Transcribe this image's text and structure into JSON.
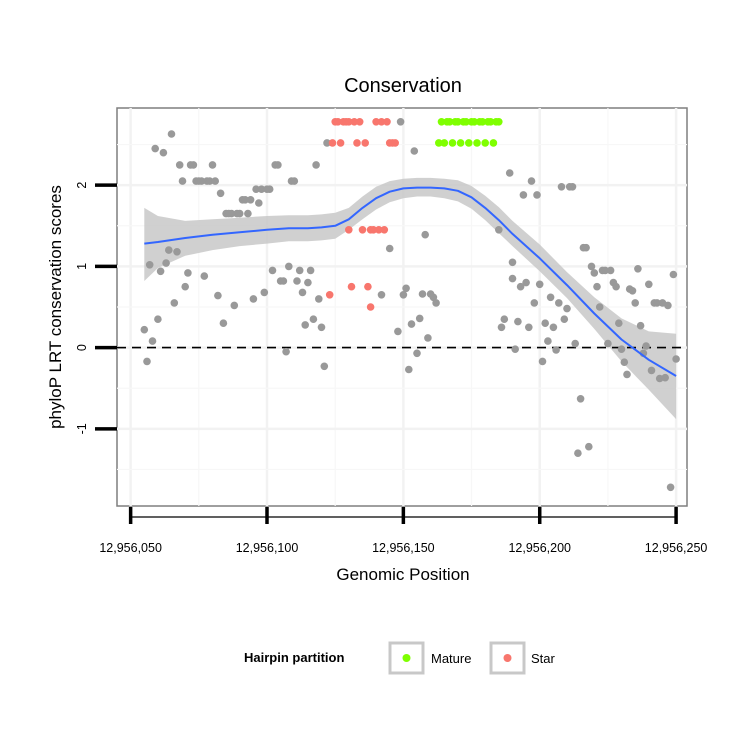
{
  "chart_data": {
    "type": "scatter",
    "title": "Conservation",
    "xlabel": "Genomic Position",
    "ylabel": "phyloP LRT conservation scores",
    "xlim": [
      12956045,
      12956254
    ],
    "ylim": [
      -1.95,
      2.95
    ],
    "x_ticks": [
      {
        "value": 12956050,
        "label": "12,956,050"
      },
      {
        "value": 12956100,
        "label": "12,956,100"
      },
      {
        "value": 12956150,
        "label": "12,956,150"
      },
      {
        "value": 12956200,
        "label": "12,956,200"
      },
      {
        "value": 12956250,
        "label": "12,956,250"
      }
    ],
    "y_ticks": [
      {
        "value": -1,
        "label": "-1"
      },
      {
        "value": 0,
        "label": "0"
      },
      {
        "value": 1,
        "label": "1"
      },
      {
        "value": 2,
        "label": "2"
      }
    ],
    "grid": true,
    "reference_line": {
      "y": 0,
      "style": "dashed"
    },
    "colors": {
      "other": "#999999",
      "Mature": "#7FFF00",
      "Star": "#F8766D",
      "smooth": "#3366FF",
      "band": "#C8C8C8"
    },
    "legend": {
      "title": "Hairpin partition",
      "position": "bottom",
      "entries": [
        {
          "label": "Mature",
          "color": "#7FFF00"
        },
        {
          "label": "Star",
          "color": "#F8766D"
        }
      ]
    },
    "series": [
      {
        "name": "other",
        "points": [
          [
            12956055,
            0.22
          ],
          [
            12956056,
            -0.17
          ],
          [
            12956057,
            1.02
          ],
          [
            12956058,
            0.08
          ],
          [
            12956059,
            2.45
          ],
          [
            12956060,
            0.35
          ],
          [
            12956061,
            0.94
          ],
          [
            12956062,
            2.4
          ],
          [
            12956063,
            1.04
          ],
          [
            12956064,
            1.2
          ],
          [
            12956065,
            2.63
          ],
          [
            12956066,
            0.55
          ],
          [
            12956067,
            1.18
          ],
          [
            12956068,
            2.25
          ],
          [
            12956069,
            2.05
          ],
          [
            12956070,
            0.75
          ],
          [
            12956071,
            0.92
          ],
          [
            12956072,
            2.25
          ],
          [
            12956073,
            2.25
          ],
          [
            12956074,
            2.05
          ],
          [
            12956075,
            2.05
          ],
          [
            12956076,
            2.05
          ],
          [
            12956077,
            0.88
          ],
          [
            12956078,
            2.05
          ],
          [
            12956079,
            2.05
          ],
          [
            12956080,
            2.25
          ],
          [
            12956081,
            2.05
          ],
          [
            12956082,
            0.64
          ],
          [
            12956083,
            1.9
          ],
          [
            12956084,
            0.3
          ],
          [
            12956085,
            1.65
          ],
          [
            12956086,
            1.65
          ],
          [
            12956087,
            1.65
          ],
          [
            12956088,
            0.52
          ],
          [
            12956089,
            1.65
          ],
          [
            12956090,
            1.65
          ],
          [
            12956091,
            1.82
          ],
          [
            12956092,
            1.82
          ],
          [
            12956093,
            1.65
          ],
          [
            12956094,
            1.82
          ],
          [
            12956095,
            0.6
          ],
          [
            12956096,
            1.95
          ],
          [
            12956097,
            1.78
          ],
          [
            12956098,
            1.95
          ],
          [
            12956099,
            0.68
          ],
          [
            12956100,
            1.95
          ],
          [
            12956101,
            1.95
          ],
          [
            12956102,
            0.95
          ],
          [
            12956103,
            2.25
          ],
          [
            12956104,
            2.25
          ],
          [
            12956105,
            0.82
          ],
          [
            12956106,
            0.82
          ],
          [
            12956107,
            -0.05
          ],
          [
            12956108,
            1.0
          ],
          [
            12956109,
            2.05
          ],
          [
            12956110,
            2.05
          ],
          [
            12956111,
            0.82
          ],
          [
            12956112,
            0.95
          ],
          [
            12956113,
            0.68
          ],
          [
            12956114,
            0.28
          ],
          [
            12956115,
            0.8
          ],
          [
            12956116,
            0.95
          ],
          [
            12956117,
            0.35
          ],
          [
            12956118,
            2.25
          ],
          [
            12956119,
            0.6
          ],
          [
            12956120,
            0.25
          ],
          [
            12956121,
            -0.23
          ],
          [
            12956122,
            2.52
          ],
          [
            12956142,
            0.65
          ],
          [
            12956145,
            1.22
          ],
          [
            12956148,
            0.2
          ],
          [
            12956149,
            2.78
          ],
          [
            12956150,
            0.65
          ],
          [
            12956151,
            0.73
          ],
          [
            12956152,
            -0.27
          ],
          [
            12956153,
            0.29
          ],
          [
            12956154,
            2.42
          ],
          [
            12956155,
            -0.07
          ],
          [
            12956156,
            0.36
          ],
          [
            12956157,
            0.66
          ],
          [
            12956158,
            1.39
          ],
          [
            12956159,
            0.12
          ],
          [
            12956160,
            0.66
          ],
          [
            12956161,
            0.62
          ],
          [
            12956162,
            0.55
          ],
          [
            12956185,
            1.45
          ],
          [
            12956186,
            0.25
          ],
          [
            12956187,
            0.35
          ],
          [
            12956189,
            2.15
          ],
          [
            12956190,
            0.85
          ],
          [
            12956190,
            1.05
          ],
          [
            12956191,
            -0.02
          ],
          [
            12956192,
            0.32
          ],
          [
            12956193,
            0.75
          ],
          [
            12956194,
            1.88
          ],
          [
            12956195,
            0.8
          ],
          [
            12956196,
            0.25
          ],
          [
            12956197,
            2.05
          ],
          [
            12956198,
            0.55
          ],
          [
            12956199,
            1.88
          ],
          [
            12956200,
            0.78
          ],
          [
            12956201,
            -0.17
          ],
          [
            12956202,
            0.3
          ],
          [
            12956203,
            0.08
          ],
          [
            12956204,
            0.62
          ],
          [
            12956205,
            0.25
          ],
          [
            12956206,
            -0.03
          ],
          [
            12956207,
            0.55
          ],
          [
            12956208,
            1.98
          ],
          [
            12956209,
            0.35
          ],
          [
            12956210,
            0.48
          ],
          [
            12956211,
            1.98
          ],
          [
            12956212,
            1.98
          ],
          [
            12956213,
            0.05
          ],
          [
            12956214,
            -1.3
          ],
          [
            12956215,
            -0.63
          ],
          [
            12956216,
            1.23
          ],
          [
            12956217,
            1.23
          ],
          [
            12956218,
            -1.22
          ],
          [
            12956219,
            1.0
          ],
          [
            12956220,
            0.92
          ],
          [
            12956221,
            0.75
          ],
          [
            12956222,
            0.5
          ],
          [
            12956223,
            0.95
          ],
          [
            12956224,
            0.95
          ],
          [
            12956225,
            0.05
          ],
          [
            12956226,
            0.95
          ],
          [
            12956227,
            0.8
          ],
          [
            12956228,
            0.75
          ],
          [
            12956229,
            0.3
          ],
          [
            12956230,
            -0.02
          ],
          [
            12956231,
            -0.18
          ],
          [
            12956232,
            -0.33
          ],
          [
            12956233,
            0.72
          ],
          [
            12956234,
            0.7
          ],
          [
            12956235,
            0.55
          ],
          [
            12956236,
            0.97
          ],
          [
            12956237,
            0.27
          ],
          [
            12956238,
            -0.07
          ],
          [
            12956239,
            0.02
          ],
          [
            12956240,
            0.78
          ],
          [
            12956241,
            -0.28
          ],
          [
            12956242,
            0.55
          ],
          [
            12956243,
            0.55
          ],
          [
            12956244,
            -0.38
          ],
          [
            12956245,
            0.55
          ],
          [
            12956246,
            -0.37
          ],
          [
            12956247,
            0.52
          ],
          [
            12956248,
            -1.72
          ],
          [
            12956249,
            0.9
          ],
          [
            12956250,
            -0.14
          ]
        ]
      },
      {
        "name": "Star",
        "points": [
          [
            12956123,
            0.65
          ],
          [
            12956124,
            2.52
          ],
          [
            12956125,
            2.78
          ],
          [
            12956126,
            2.78
          ],
          [
            12956127,
            2.52
          ],
          [
            12956128,
            2.78
          ],
          [
            12956129,
            2.78
          ],
          [
            12956130,
            1.45
          ],
          [
            12956130,
            2.78
          ],
          [
            12956131,
            0.75
          ],
          [
            12956132,
            2.78
          ],
          [
            12956133,
            2.52
          ],
          [
            12956134,
            2.78
          ],
          [
            12956135,
            1.45
          ],
          [
            12956136,
            2.52
          ],
          [
            12956137,
            0.75
          ],
          [
            12956138,
            1.45
          ],
          [
            12956138,
            0.5
          ],
          [
            12956139,
            1.45
          ],
          [
            12956140,
            2.78
          ],
          [
            12956141,
            1.45
          ],
          [
            12956142,
            2.78
          ],
          [
            12956143,
            1.45
          ],
          [
            12956144,
            2.78
          ],
          [
            12956145,
            2.52
          ],
          [
            12956146,
            2.52
          ],
          [
            12956147,
            2.52
          ]
        ]
      },
      {
        "name": "Mature",
        "points": [
          [
            12956163,
            2.52
          ],
          [
            12956164,
            2.78
          ],
          [
            12956165,
            2.52
          ],
          [
            12956166,
            2.78
          ],
          [
            12956167,
            2.78
          ],
          [
            12956168,
            2.52
          ],
          [
            12956169,
            2.78
          ],
          [
            12956170,
            2.78
          ],
          [
            12956171,
            2.52
          ],
          [
            12956172,
            2.78
          ],
          [
            12956173,
            2.78
          ],
          [
            12956174,
            2.52
          ],
          [
            12956175,
            2.78
          ],
          [
            12956176,
            2.78
          ],
          [
            12956177,
            2.52
          ],
          [
            12956178,
            2.78
          ],
          [
            12956179,
            2.78
          ],
          [
            12956180,
            2.52
          ],
          [
            12956181,
            2.78
          ],
          [
            12956182,
            2.78
          ],
          [
            12956183,
            2.52
          ],
          [
            12956184,
            2.78
          ],
          [
            12956185,
            2.78
          ]
        ]
      }
    ],
    "smooth": {
      "x": [
        12956055,
        12956060,
        12956070,
        12956080,
        12956090,
        12956100,
        12956108,
        12956115,
        12956120,
        12956125,
        12956130,
        12956135,
        12956140,
        12956145,
        12956150,
        12956155,
        12956160,
        12956165,
        12956170,
        12956175,
        12956180,
        12956185,
        12956190,
        12956200,
        12956210,
        12956220,
        12956230,
        12956240,
        12956250
      ],
      "y": [
        1.28,
        1.3,
        1.35,
        1.39,
        1.42,
        1.45,
        1.47,
        1.47,
        1.48,
        1.5,
        1.58,
        1.72,
        1.84,
        1.92,
        1.96,
        1.97,
        1.97,
        1.96,
        1.93,
        1.85,
        1.72,
        1.57,
        1.4,
        1.1,
        0.77,
        0.42,
        0.1,
        -0.15,
        -0.35
      ],
      "lo": [
        0.82,
        0.98,
        1.13,
        1.2,
        1.25,
        1.28,
        1.31,
        1.31,
        1.32,
        1.34,
        1.45,
        1.58,
        1.7,
        1.79,
        1.84,
        1.86,
        1.86,
        1.84,
        1.8,
        1.71,
        1.57,
        1.41,
        1.25,
        0.94,
        0.61,
        0.23,
        -0.17,
        -0.52,
        -0.88
      ],
      "hi": [
        1.72,
        1.62,
        1.56,
        1.58,
        1.6,
        1.62,
        1.63,
        1.63,
        1.64,
        1.66,
        1.72,
        1.86,
        1.98,
        2.05,
        2.08,
        2.09,
        2.09,
        2.08,
        2.06,
        1.99,
        1.87,
        1.73,
        1.56,
        1.27,
        0.93,
        0.62,
        0.36,
        0.2,
        0.17
      ]
    }
  }
}
